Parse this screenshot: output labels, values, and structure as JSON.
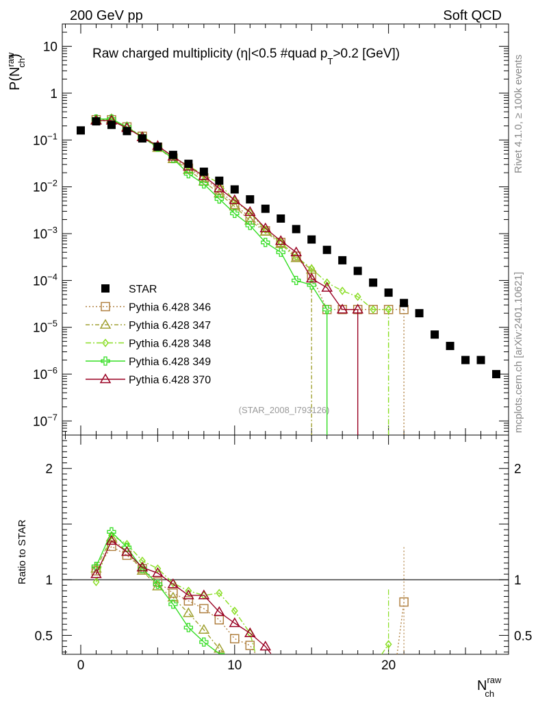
{
  "header": {
    "left": "200 GeV pp",
    "right": "Soft QCD"
  },
  "side": {
    "rivet": "Rivet 4.1.0, ≥ 100k events",
    "mcplots": "mcplots.cern.ch [arXiv:2401.10621]"
  },
  "chart_data": {
    "type": "scatter",
    "title_prefix": "Raw charged multiplicity (",
    "title_eta": "η",
    "title_mid": "|<0.5 #quad p",
    "title_sub": "T",
    "title_suffix": ">0.2 [GeV])",
    "ylabel_main": "P(N",
    "ylabel_sup": "raw",
    "ylabel_sub": "ch",
    "ylabel_close": ")",
    "ylabel_ratio": "Ratio to STAR",
    "xlabel_main": "N",
    "xlabel_sup": "raw",
    "xlabel_sub": "ch",
    "analysis_tag": "(STAR_2008_I793126)",
    "xlim": [
      -1.2,
      27.8
    ],
    "ylim_main": [
      5e-08,
      30
    ],
    "ylim_ratio": [
      0.33,
      2.3
    ],
    "x_ticks": [
      {
        "value": 0,
        "label": "0"
      },
      {
        "value": 10,
        "label": "10"
      },
      {
        "value": 20,
        "label": "20"
      }
    ],
    "y_ticks_main": [
      {
        "value": 10,
        "base": "10",
        "exp": ""
      },
      {
        "value": 1,
        "base": "1",
        "exp": ""
      },
      {
        "value": 0.1,
        "base": "10",
        "exp": "−1"
      },
      {
        "value": 0.01,
        "base": "10",
        "exp": "−2"
      },
      {
        "value": 0.001,
        "base": "10",
        "exp": "−3"
      },
      {
        "value": 0.0001,
        "base": "10",
        "exp": "−4"
      },
      {
        "value": 1e-05,
        "base": "10",
        "exp": "−5"
      },
      {
        "value": 1e-06,
        "base": "10",
        "exp": "−6"
      },
      {
        "value": 1e-07,
        "base": "10",
        "exp": "−7"
      }
    ],
    "y_ticks_ratio": [
      {
        "value": 2,
        "label": "2"
      },
      {
        "value": 1,
        "label": "1"
      },
      {
        "value": 0.5,
        "label": "0.5"
      }
    ],
    "reference": {
      "name": "STAR",
      "color": "#000000",
      "x": [
        0,
        1,
        2,
        3,
        4,
        5,
        6,
        7,
        8,
        9,
        10,
        11,
        12,
        13,
        14,
        15,
        16,
        17,
        18,
        19,
        20,
        21,
        22,
        23,
        24,
        25,
        26,
        27
      ],
      "y": [
        0.16,
        0.25,
        0.21,
        0.155,
        0.108,
        0.072,
        0.048,
        0.031,
        0.021,
        0.0135,
        0.0088,
        0.0054,
        0.0034,
        0.0021,
        0.00125,
        0.00075,
        0.00045,
        0.00027,
        0.00016,
        9e-05,
        5.5e-05,
        3.3e-05,
        2e-05,
        7e-06,
        4e-06,
        2e-06,
        2e-06,
        1e-06
      ]
    },
    "series": [
      {
        "name": "Pythia 6.428 346",
        "color": "#b08040",
        "marker": "square",
        "dash": "2,3",
        "x": [
          1,
          2,
          3,
          4,
          5,
          6,
          7,
          8,
          9,
          10,
          11,
          12,
          13,
          14,
          15,
          16,
          17,
          18,
          19,
          20,
          21
        ],
        "y": [
          0.27,
          0.27,
          0.19,
          0.12,
          0.07,
          0.041,
          0.025,
          0.0155,
          0.0085,
          0.0042,
          0.0022,
          0.00115,
          0.00065,
          0.00033,
          0.00013,
          2.4e-05,
          2.4e-05,
          2.4e-05,
          2.4e-05,
          2.4e-05,
          2.4e-05
        ],
        "ratio_x": [
          1,
          2,
          3,
          4,
          5,
          6,
          7,
          8,
          9,
          10,
          11,
          21
        ],
        "ratio": [
          1.08,
          1.3,
          1.22,
          1.1,
          0.98,
          0.88,
          0.81,
          0.74,
          0.64,
          0.47,
          0.41,
          0.8
        ]
      },
      {
        "name": "Pythia 6.428 347",
        "color": "#a0a030",
        "marker": "triangle",
        "dash": "6,3,2,3",
        "x": [
          1,
          2,
          3,
          4,
          5,
          6,
          7,
          8,
          9,
          10,
          11,
          12,
          13,
          14,
          15
        ],
        "y": [
          0.27,
          0.28,
          0.19,
          0.115,
          0.068,
          0.039,
          0.023,
          0.013,
          0.0072,
          0.0038,
          0.0019,
          0.0011,
          0.0006,
          0.0003,
          0.00017
        ],
        "ratio_x": [
          1,
          2,
          3,
          4,
          5,
          6,
          7,
          8,
          9
        ],
        "ratio": [
          1.1,
          1.38,
          1.25,
          1.08,
          0.94,
          0.84,
          0.7,
          0.55,
          0.38
        ]
      },
      {
        "name": "Pythia 6.428 348",
        "color": "#88dd22",
        "marker": "diamond",
        "dash": "8,3,2,3",
        "x": [
          1,
          2,
          3,
          4,
          5,
          6,
          7,
          8,
          9,
          10,
          11,
          12,
          13,
          14,
          15,
          16,
          17,
          18,
          19,
          20
        ],
        "y": [
          0.25,
          0.26,
          0.19,
          0.12,
          0.076,
          0.044,
          0.028,
          0.018,
          0.012,
          0.005,
          0.0028,
          0.0012,
          0.00065,
          0.00032,
          0.00018,
          9e-05,
          6e-05,
          4.5e-05,
          2.4e-05,
          2.4e-05
        ],
        "ratio_x": [
          1,
          2,
          3,
          4,
          5,
          6,
          7,
          8,
          9,
          10,
          11,
          20
        ],
        "ratio": [
          0.98,
          1.4,
          1.32,
          1.17,
          1.1,
          0.97,
          0.9,
          0.86,
          0.88,
          0.72,
          0.52,
          0.42
        ]
      },
      {
        "name": "Pythia 6.428 349",
        "color": "#33dd22",
        "marker": "cross",
        "dash": "",
        "x": [
          1,
          2,
          3,
          4,
          5,
          6,
          7,
          8,
          9,
          10,
          11,
          12,
          13,
          14,
          15,
          16
        ],
        "y": [
          0.28,
          0.28,
          0.19,
          0.115,
          0.07,
          0.04,
          0.019,
          0.0115,
          0.0055,
          0.0027,
          0.0015,
          0.00065,
          0.0004,
          0.0001,
          8e-05,
          2.4e-05
        ],
        "ratio_x": [
          1,
          2,
          3,
          4,
          5,
          6,
          7,
          8,
          9
        ],
        "ratio": [
          1.12,
          1.43,
          1.29,
          1.1,
          0.96,
          0.78,
          0.57,
          0.44,
          0.3
        ]
      },
      {
        "name": "Pythia 6.428 370",
        "color": "#990022",
        "marker": "triangle",
        "dash": "",
        "x": [
          1,
          2,
          3,
          4,
          5,
          6,
          7,
          8,
          9,
          10,
          11,
          12,
          13,
          14,
          15,
          16,
          17,
          18
        ],
        "y": [
          0.26,
          0.26,
          0.18,
          0.115,
          0.075,
          0.044,
          0.027,
          0.017,
          0.0093,
          0.0052,
          0.0029,
          0.0013,
          0.0007,
          0.0004,
          0.00011,
          7e-05,
          2.4e-05,
          2.4e-05
        ],
        "ratio_x": [
          1,
          2,
          3,
          4,
          5,
          6,
          7,
          8,
          9,
          10,
          11,
          12
        ],
        "ratio": [
          1.05,
          1.35,
          1.25,
          1.11,
          1.06,
          0.96,
          0.86,
          0.86,
          0.71,
          0.61,
          0.52,
          0.4
        ]
      }
    ]
  }
}
